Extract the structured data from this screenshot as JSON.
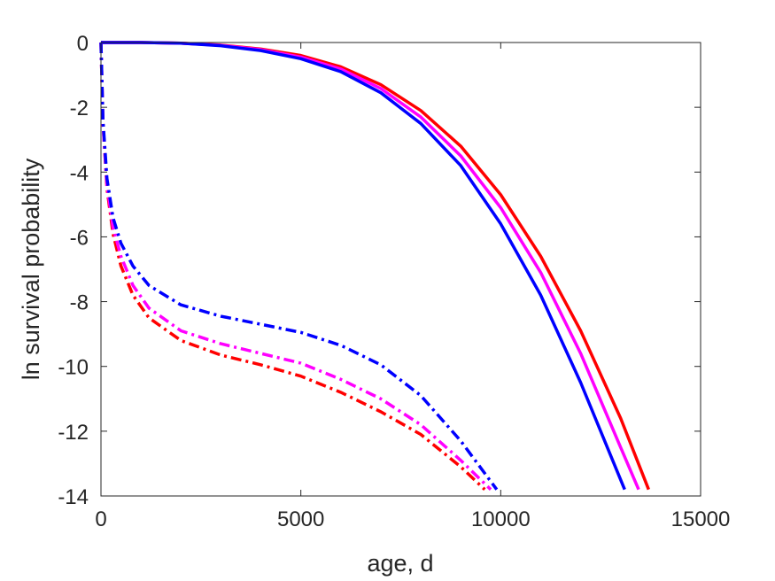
{
  "chart_data": {
    "type": "line",
    "title": "",
    "xlabel": "age, d",
    "ylabel": "ln survival probability",
    "xlim": [
      0,
      15000
    ],
    "ylim": [
      -14,
      0
    ],
    "xticks": [
      "0",
      "5000",
      "10000",
      "15000"
    ],
    "yticks": [
      "0",
      "-2",
      "-4",
      "-6",
      "-8",
      "-10",
      "-12",
      "-14"
    ],
    "xtick_values": [
      0,
      5000,
      10000,
      15000
    ],
    "ytick_values": [
      0,
      -2,
      -4,
      -6,
      -8,
      -10,
      -12,
      -14
    ],
    "grid": false,
    "legend": false,
    "series": [
      {
        "color": "#ff0000",
        "style": "solid",
        "x": [
          0,
          1000,
          2000,
          3000,
          4000,
          5000,
          6000,
          7000,
          8000,
          9000,
          10000,
          11000,
          12000,
          13000,
          13700
        ],
        "y": [
          0,
          0,
          -0.02,
          -0.08,
          -0.2,
          -0.4,
          -0.75,
          -1.3,
          -2.1,
          -3.2,
          -4.7,
          -6.6,
          -8.9,
          -11.6,
          -13.8
        ]
      },
      {
        "color": "#ff00ff",
        "style": "solid",
        "x": [
          0,
          1000,
          2000,
          3000,
          4000,
          5000,
          6000,
          7000,
          8000,
          9000,
          10000,
          11000,
          12000,
          13000,
          13450
        ],
        "y": [
          0,
          0,
          -0.02,
          -0.09,
          -0.22,
          -0.45,
          -0.82,
          -1.42,
          -2.3,
          -3.5,
          -5.1,
          -7.1,
          -9.6,
          -12.5,
          -13.8
        ]
      },
      {
        "color": "#0000ff",
        "style": "solid",
        "x": [
          0,
          1000,
          2000,
          3000,
          4000,
          5000,
          6000,
          7000,
          8000,
          9000,
          10000,
          11000,
          12000,
          12500,
          13100
        ],
        "y": [
          0,
          0,
          -0.02,
          -0.1,
          -0.25,
          -0.5,
          -0.9,
          -1.55,
          -2.5,
          -3.8,
          -5.6,
          -7.8,
          -10.5,
          -12.0,
          -13.8
        ]
      },
      {
        "color": "#ff0000",
        "style": "dashdot",
        "x": [
          0,
          50,
          150,
          300,
          500,
          800,
          1200,
          2000,
          3000,
          4000,
          5000,
          6000,
          7000,
          8000,
          9000,
          9600
        ],
        "y": [
          0,
          -2.5,
          -4.5,
          -5.9,
          -6.9,
          -7.8,
          -8.5,
          -9.2,
          -9.65,
          -9.95,
          -10.3,
          -10.8,
          -11.4,
          -12.1,
          -13.1,
          -13.8
        ]
      },
      {
        "color": "#ff00ff",
        "style": "dashdot",
        "x": [
          0,
          50,
          150,
          300,
          500,
          800,
          1200,
          2000,
          3000,
          4000,
          5000,
          6000,
          7000,
          8000,
          9000,
          9750
        ],
        "y": [
          0,
          -2.5,
          -4.4,
          -5.7,
          -6.6,
          -7.5,
          -8.2,
          -8.9,
          -9.3,
          -9.6,
          -9.9,
          -10.4,
          -11.0,
          -11.8,
          -12.9,
          -13.8
        ]
      },
      {
        "color": "#0000ff",
        "style": "dashdot",
        "x": [
          0,
          50,
          150,
          300,
          500,
          800,
          1200,
          2000,
          3000,
          4000,
          5000,
          6000,
          7000,
          8000,
          9000,
          9900
        ],
        "y": [
          0,
          -2.4,
          -4.2,
          -5.4,
          -6.2,
          -6.9,
          -7.5,
          -8.1,
          -8.45,
          -8.7,
          -8.95,
          -9.35,
          -9.95,
          -10.9,
          -12.3,
          -13.8
        ]
      }
    ]
  }
}
